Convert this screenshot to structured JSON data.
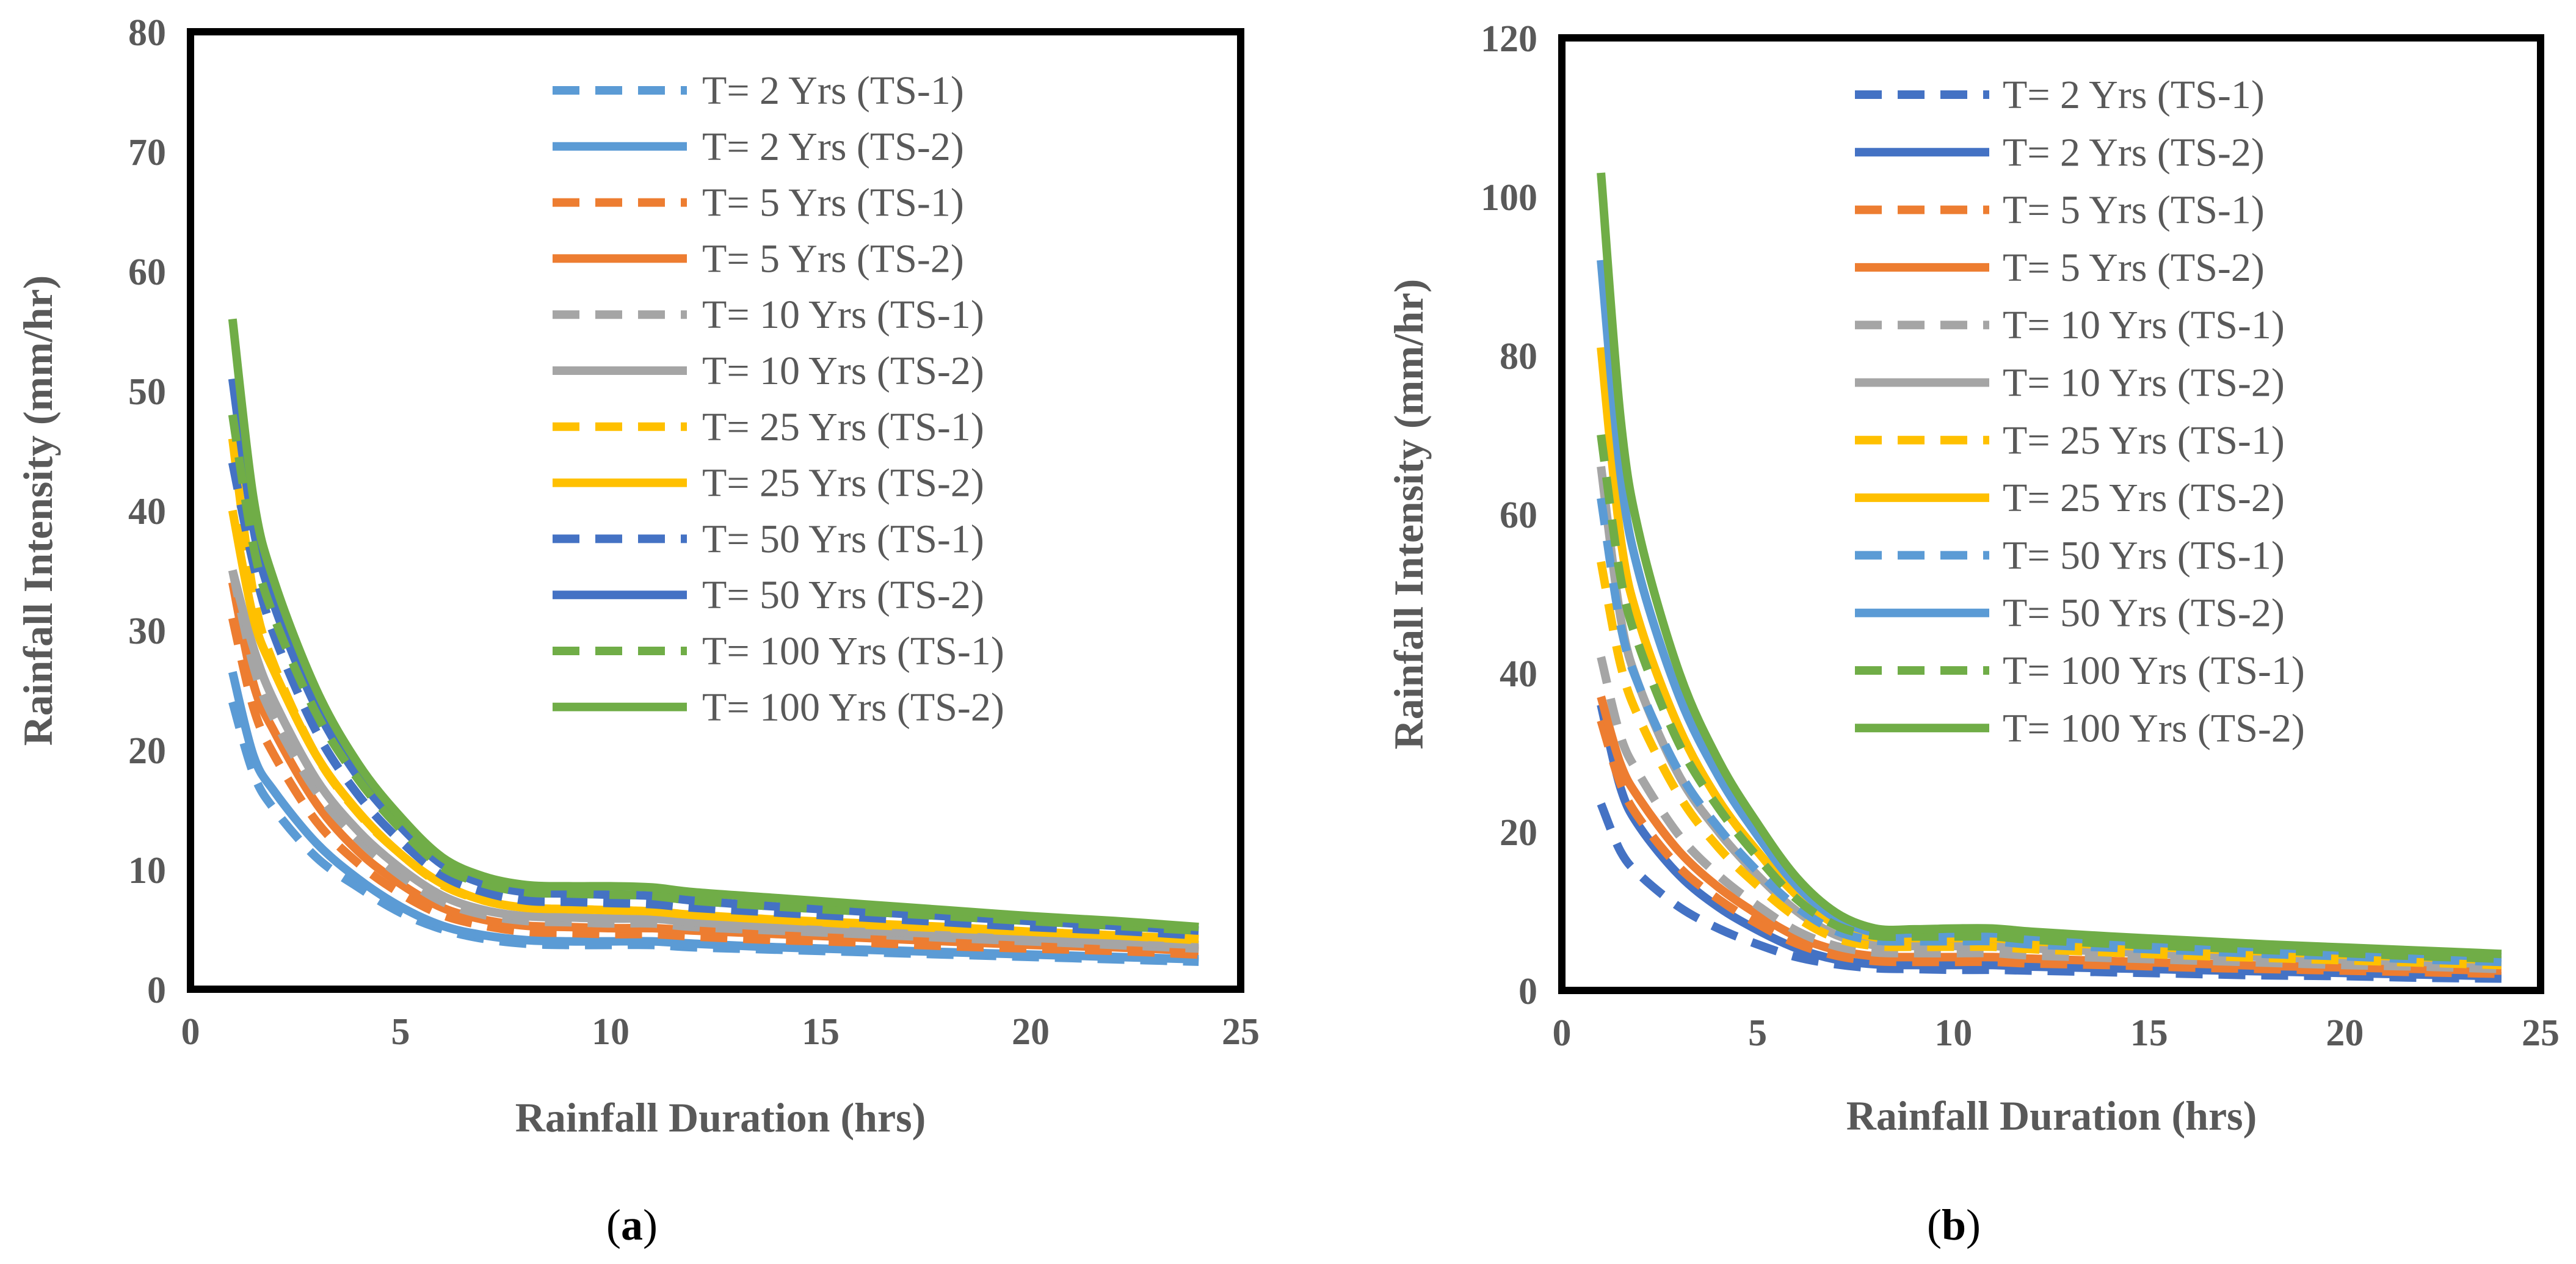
{
  "colors": {
    "2": "#5B9BD5",
    "5": "#ED7D31",
    "10": "#A5A5A5",
    "25": "#FFC000",
    "50": "#4472C4",
    "100": "#70AD47",
    "frame": "#000000",
    "text": "#595959"
  },
  "chart_data": [
    {
      "type": "line",
      "panel_label": "a",
      "xlabel": "Rainfall Duration (hrs)",
      "ylabel": "Rainfall Intensity (mm/hr)",
      "xlim": [
        0,
        25
      ],
      "ylim": [
        0,
        80
      ],
      "xticks": [
        "0",
        "5",
        "10",
        "15",
        "20",
        "25"
      ],
      "yticks": [
        "0",
        "10",
        "20",
        "30",
        "40",
        "50",
        "60",
        "70",
        "80"
      ],
      "legend_position": "top-right",
      "grid": false,
      "x": [
        1,
        1.5,
        2,
        3,
        4,
        5,
        6,
        7,
        8,
        9,
        10,
        11,
        12,
        14,
        16,
        18,
        20,
        22,
        24
      ],
      "series": [
        {
          "name": "T= 2 Yrs (TS-1)",
          "color_key": "2",
          "dash": true,
          "values": [
            24,
            18,
            15,
            11,
            8.5,
            6.4,
            5.0,
            4.2,
            3.8,
            3.7,
            3.7,
            3.7,
            3.5,
            3.3,
            3.1,
            2.9,
            2.7,
            2.5,
            2.3
          ]
        },
        {
          "name": "T= 2 Yrs (TS-2)",
          "color_key": "2",
          "dash": false,
          "values": [
            26.5,
            19.5,
            16.5,
            12.2,
            9.2,
            6.9,
            5.3,
            4.5,
            4.1,
            4.0,
            4.0,
            4.0,
            3.8,
            3.5,
            3.3,
            3.1,
            2.9,
            2.7,
            2.5
          ]
        },
        {
          "name": "T= 5 Yrs (TS-1)",
          "color_key": "5",
          "dash": true,
          "values": [
            31,
            23.5,
            19.5,
            14,
            10.5,
            8.0,
            6.2,
            5.3,
            4.8,
            4.7,
            4.6,
            4.6,
            4.4,
            4.1,
            3.9,
            3.6,
            3.4,
            3.2,
            2.9
          ]
        },
        {
          "name": "T= 5 Yrs (TS-2)",
          "color_key": "5",
          "dash": false,
          "values": [
            34,
            25.5,
            21.5,
            15.5,
            11.5,
            8.8,
            6.8,
            5.8,
            5.3,
            5.2,
            5.1,
            5.1,
            4.9,
            4.6,
            4.3,
            4.0,
            3.7,
            3.5,
            3.2
          ]
        },
        {
          "name": "T= 10 Yrs (TS-1)",
          "color_key": "10",
          "dash": true,
          "values": [
            35,
            27,
            22.5,
            16.5,
            12.5,
            9.5,
            7.3,
            6.2,
            5.7,
            5.6,
            5.5,
            5.5,
            5.2,
            4.9,
            4.6,
            4.3,
            4.0,
            3.7,
            3.4
          ]
        },
        {
          "name": "T= 10 Yrs (TS-2)",
          "color_key": "10",
          "dash": false,
          "values": [
            35,
            28.5,
            24,
            17.5,
            13.2,
            10.1,
            7.8,
            6.6,
            6.1,
            6.0,
            5.9,
            5.9,
            5.6,
            5.2,
            4.9,
            4.6,
            4.3,
            4.0,
            3.7
          ]
        },
        {
          "name": "T= 25 Yrs (TS-1)",
          "color_key": "25",
          "dash": true,
          "values": [
            46,
            33,
            27,
            19.5,
            14.7,
            11.3,
            8.7,
            7.4,
            6.8,
            6.7,
            6.6,
            6.5,
            6.2,
            5.8,
            5.4,
            5.1,
            4.8,
            4.5,
            4.1
          ]
        },
        {
          "name": "T= 25 Yrs (TS-2)",
          "color_key": "25",
          "dash": false,
          "values": [
            40,
            31,
            26.5,
            19.5,
            14.8,
            11.3,
            8.8,
            7.4,
            6.8,
            6.7,
            6.6,
            6.5,
            6.2,
            5.8,
            5.5,
            5.2,
            4.8,
            4.5,
            4.2
          ]
        },
        {
          "name": "T= 50 Yrs (TS-1)",
          "color_key": "50",
          "dash": true,
          "values": [
            44,
            35.5,
            29.5,
            21.5,
            16.2,
            12.4,
            9.5,
            8.1,
            7.4,
            7.3,
            7.2,
            7.1,
            6.8,
            6.4,
            6.0,
            5.6,
            5.2,
            4.9,
            4.5
          ]
        },
        {
          "name": "T= 50 Yrs (TS-2)",
          "color_key": "50",
          "dash": false,
          "values": [
            51,
            38.5,
            32,
            23.5,
            17.7,
            13.6,
            10.4,
            8.8,
            8.1,
            8.0,
            7.9,
            7.8,
            7.4,
            6.9,
            6.5,
            6.1,
            5.7,
            5.3,
            4.9
          ]
        },
        {
          "name": "T= 100 Yrs (TS-1)",
          "color_key": "100",
          "dash": true,
          "values": [
            48,
            37,
            31,
            23,
            17.5,
            13.4,
            10.2,
            8.8,
            8.1,
            8.0,
            7.9,
            7.8,
            7.4,
            6.9,
            6.5,
            6.1,
            5.7,
            5.3,
            4.9
          ]
        },
        {
          "name": "T= 100 Yrs (TS-2)",
          "color_key": "100",
          "dash": false,
          "values": [
            56,
            41,
            34,
            25,
            18.8,
            14.4,
            11.0,
            9.4,
            8.7,
            8.6,
            8.6,
            8.5,
            8.1,
            7.6,
            7.1,
            6.6,
            6.1,
            5.7,
            5.2
          ]
        }
      ]
    },
    {
      "type": "line",
      "panel_label": "b",
      "xlabel": "Rainfall Duration (hrs)",
      "ylabel": "Rainfall Intensity (mm/hr)",
      "xlim": [
        0,
        25
      ],
      "ylim": [
        0,
        120
      ],
      "xticks": [
        "0",
        "5",
        "10",
        "15",
        "20",
        "25"
      ],
      "yticks": [
        "0",
        "20",
        "40",
        "60",
        "80",
        "100",
        "120"
      ],
      "legend_position": "top-right",
      "grid": false,
      "x": [
        1,
        1.5,
        2,
        3,
        4,
        5,
        6,
        7,
        8,
        9,
        10,
        11,
        12,
        14,
        16,
        18,
        20,
        22,
        24
      ],
      "series": [
        {
          "name": "T= 2 Yrs (TS-1)",
          "color_key": "50",
          "dash": true,
          "values": [
            23.5,
            17.5,
            14.5,
            10.5,
            7.8,
            5.8,
            4.2,
            3.3,
            2.8,
            2.7,
            2.6,
            2.6,
            2.5,
            2.3,
            2.1,
            1.9,
            1.8,
            1.6,
            1.5
          ]
        },
        {
          "name": "T= 2 Yrs (TS-2)",
          "color_key": "50",
          "dash": false,
          "values": [
            36,
            25.5,
            20.5,
            14.5,
            10.5,
            7.6,
            5.3,
            3.9,
            3.3,
            3.2,
            3.2,
            3.2,
            3.0,
            2.8,
            2.6,
            2.4,
            2.2,
            2.0,
            1.8
          ]
        },
        {
          "name": "T= 5 Yrs (TS-1)",
          "color_key": "5",
          "dash": true,
          "values": [
            34,
            26,
            21.5,
            15.5,
            11.5,
            8.4,
            5.9,
            4.4,
            3.7,
            3.6,
            3.6,
            3.6,
            3.4,
            3.2,
            2.9,
            2.7,
            2.5,
            2.3,
            2.1
          ]
        },
        {
          "name": "T= 5 Yrs (TS-2)",
          "color_key": "5",
          "dash": false,
          "values": [
            37,
            28.5,
            24,
            17.5,
            13,
            9.6,
            6.8,
            5.1,
            4.3,
            4.2,
            4.2,
            4.2,
            4.0,
            3.7,
            3.4,
            3.1,
            2.9,
            2.7,
            2.5
          ]
        },
        {
          "name": "T= 10 Yrs (TS-1)",
          "color_key": "10",
          "dash": true,
          "values": [
            42,
            32,
            27,
            19.5,
            14.5,
            10.7,
            7.5,
            5.6,
            4.8,
            4.7,
            4.7,
            4.7,
            4.4,
            4.1,
            3.8,
            3.5,
            3.2,
            3.0,
            2.7
          ]
        },
        {
          "name": "T= 10 Yrs (TS-2)",
          "color_key": "10",
          "dash": false,
          "values": [
            66,
            47,
            38,
            27,
            20,
            14.5,
            10,
            7.0,
            5.7,
            5.6,
            5.6,
            5.6,
            5.3,
            4.9,
            4.5,
            4.2,
            3.9,
            3.6,
            3.3
          ]
        },
        {
          "name": "T= 25 Yrs (TS-1)",
          "color_key": "25",
          "dash": true,
          "values": [
            54,
            41,
            34,
            24.5,
            18,
            13.2,
            9.2,
            6.6,
            5.6,
            5.5,
            5.5,
            5.5,
            5.2,
            4.8,
            4.4,
            4.1,
            3.8,
            3.5,
            3.2
          ]
        },
        {
          "name": "T= 25 Yrs (TS-2)",
          "color_key": "25",
          "dash": false,
          "values": [
            81,
            57,
            46,
            33,
            24,
            17.5,
            12,
            8.3,
            6.7,
            6.6,
            6.6,
            6.6,
            6.2,
            5.7,
            5.3,
            4.9,
            4.5,
            4.2,
            3.8
          ]
        },
        {
          "name": "T= 50 Yrs (TS-1)",
          "color_key": "2",
          "dash": true,
          "values": [
            62,
            46,
            38,
            27.5,
            20.5,
            15,
            10.5,
            7.5,
            6.3,
            6.2,
            6.2,
            6.2,
            5.8,
            5.4,
            5.0,
            4.6,
            4.3,
            3.9,
            3.6
          ]
        },
        {
          "name": "T= 50 Yrs (TS-2)",
          "color_key": "2",
          "dash": false,
          "values": [
            92,
            65,
            52,
            37,
            27,
            19.5,
            13.2,
            9.1,
            7.3,
            7.2,
            7.2,
            7.2,
            6.8,
            6.3,
            5.8,
            5.4,
            5.0,
            4.6,
            4.2
          ]
        },
        {
          "name": "T= 100 Yrs (TS-1)",
          "color_key": "100",
          "dash": true,
          "values": [
            70,
            52,
            43,
            31,
            23,
            16.8,
            11.5,
            8.2,
            6.9,
            6.8,
            6.8,
            6.8,
            6.4,
            5.9,
            5.5,
            5.1,
            4.7,
            4.3,
            4.0
          ]
        },
        {
          "name": "T= 100 Yrs (TS-2)",
          "color_key": "100",
          "dash": false,
          "values": [
            103,
            72,
            57,
            40,
            29,
            21,
            14.2,
            9.8,
            7.8,
            7.7,
            7.8,
            7.8,
            7.4,
            6.8,
            6.3,
            5.8,
            5.4,
            5.0,
            4.6
          ]
        }
      ]
    }
  ]
}
